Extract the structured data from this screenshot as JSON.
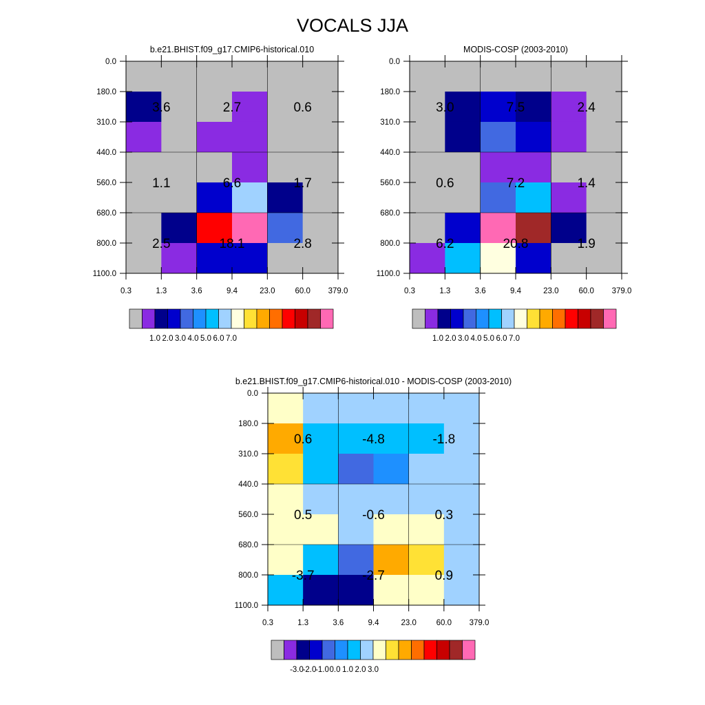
{
  "title": "VOCALS JJA",
  "colors": {
    "clear": "#bebebe",
    "seq": [
      "#bebebe",
      "#8a2be2",
      "#00008b",
      "#0000cd",
      "#4169e1",
      "#1e90ff",
      "#00bfff",
      "#a0d2ff",
      "#ffffe0",
      "#ffe135",
      "#ffaa00",
      "#ff6e00",
      "#ff0000",
      "#c80000",
      "#a02828",
      "#ff69b4"
    ],
    "diff": [
      "#bebebe",
      "#8a2be2",
      "#00008b",
      "#0000cd",
      "#4169e1",
      "#1e90ff",
      "#00bfff",
      "#a0d2ff",
      "#ffffc8",
      "#ffe135",
      "#ffaa00",
      "#ff6e00",
      "#ff0000",
      "#c80000",
      "#a02828",
      "#ff69b4"
    ]
  },
  "chart_data": [
    {
      "type": "heatmap",
      "id": "model",
      "title": "b.e21.BHIST.f09_g17.CMIP6-historical.010",
      "x_ticks": [
        "0.3",
        "1.3",
        "3.6",
        "9.4",
        "23.0",
        "60.0",
        "379.0"
      ],
      "y_ticks": [
        "0.0",
        "180.0",
        "310.0",
        "440.0",
        "560.0",
        "680.0",
        "800.0",
        "1100.0"
      ],
      "grid": true,
      "cells": [
        [
          0,
          0,
          0,
          0,
          0,
          0
        ],
        [
          2,
          0,
          0,
          1,
          0,
          0
        ],
        [
          1,
          0,
          1,
          1,
          0,
          0
        ],
        [
          0,
          0,
          0,
          1,
          0,
          0
        ],
        [
          0,
          0,
          3,
          7,
          2,
          0
        ],
        [
          0,
          2,
          12,
          15,
          4,
          0
        ],
        [
          0,
          1,
          3,
          3,
          0,
          0
        ]
      ],
      "region_labels": [
        {
          "row": 0,
          "col": 0,
          "text": "3.6"
        },
        {
          "row": 0,
          "col": 1,
          "text": "2.7"
        },
        {
          "row": 0,
          "col": 2,
          "text": "0.6"
        },
        {
          "row": 1,
          "col": 0,
          "text": "1.1"
        },
        {
          "row": 1,
          "col": 1,
          "text": "6.6"
        },
        {
          "row": 1,
          "col": 2,
          "text": "1.7"
        },
        {
          "row": 2,
          "col": 0,
          "text": "2.5"
        },
        {
          "row": 2,
          "col": 1,
          "text": "18.1"
        },
        {
          "row": 2,
          "col": 2,
          "text": "2.8"
        }
      ],
      "colorbar": {
        "palette": "seq",
        "labels": [
          "1.0",
          "2.0",
          "3.0",
          "4.0",
          "5.0",
          "6.0",
          "7.0"
        ]
      }
    },
    {
      "type": "heatmap",
      "id": "obs",
      "title": "MODIS-COSP (2003-2010)",
      "x_ticks": [
        "0.3",
        "1.3",
        "3.6",
        "9.4",
        "23.0",
        "60.0",
        "379.0"
      ],
      "y_ticks": [
        "0.0",
        "180.0",
        "310.0",
        "440.0",
        "560.0",
        "680.0",
        "800.0",
        "1100.0"
      ],
      "grid": true,
      "cells": [
        [
          0,
          0,
          0,
          0,
          0,
          0
        ],
        [
          0,
          2,
          3,
          2,
          1,
          0
        ],
        [
          0,
          2,
          4,
          3,
          1,
          0
        ],
        [
          0,
          0,
          1,
          1,
          0,
          0
        ],
        [
          0,
          0,
          4,
          6,
          1,
          0
        ],
        [
          0,
          3,
          15,
          14,
          2,
          0
        ],
        [
          1,
          6,
          8,
          3,
          0,
          0
        ]
      ],
      "region_labels": [
        {
          "row": 0,
          "col": 0,
          "text": "3.0"
        },
        {
          "row": 0,
          "col": 1,
          "text": "7.5"
        },
        {
          "row": 0,
          "col": 2,
          "text": "2.4"
        },
        {
          "row": 1,
          "col": 0,
          "text": "0.6"
        },
        {
          "row": 1,
          "col": 1,
          "text": "7.2"
        },
        {
          "row": 1,
          "col": 2,
          "text": "1.4"
        },
        {
          "row": 2,
          "col": 0,
          "text": "6.2"
        },
        {
          "row": 2,
          "col": 1,
          "text": "20.8"
        },
        {
          "row": 2,
          "col": 2,
          "text": "1.9"
        }
      ],
      "colorbar": {
        "palette": "seq",
        "labels": [
          "1.0",
          "2.0",
          "3.0",
          "4.0",
          "5.0",
          "6.0",
          "7.0"
        ]
      }
    },
    {
      "type": "heatmap",
      "id": "diff",
      "title": "b.e21.BHIST.f09_g17.CMIP6-historical.010 - MODIS-COSP (2003-2010)",
      "x_ticks": [
        "0.3",
        "1.3",
        "3.6",
        "9.4",
        "23.0",
        "60.0",
        "379.0"
      ],
      "y_ticks": [
        "0.0",
        "180.0",
        "310.0",
        "440.0",
        "560.0",
        "680.0",
        "800.0",
        "1100.0"
      ],
      "grid": true,
      "cells": [
        [
          8,
          7,
          7,
          7,
          7,
          7
        ],
        [
          10,
          6,
          6,
          6,
          6,
          7
        ],
        [
          9,
          6,
          4,
          5,
          7,
          7
        ],
        [
          8,
          7,
          7,
          7,
          7,
          7
        ],
        [
          8,
          8,
          7,
          8,
          8,
          7
        ],
        [
          8,
          6,
          4,
          10,
          9,
          7
        ],
        [
          6,
          2,
          2,
          8,
          8,
          7
        ]
      ],
      "region_labels": [
        {
          "row": 0,
          "col": 0,
          "text": "0.6"
        },
        {
          "row": 0,
          "col": 1,
          "text": "-4.8"
        },
        {
          "row": 0,
          "col": 2,
          "text": "-1.8"
        },
        {
          "row": 1,
          "col": 0,
          "text": "0.5"
        },
        {
          "row": 1,
          "col": 1,
          "text": "-0.6"
        },
        {
          "row": 1,
          "col": 2,
          "text": "0.3"
        },
        {
          "row": 2,
          "col": 0,
          "text": "-3.7"
        },
        {
          "row": 2,
          "col": 1,
          "text": "-2.7"
        },
        {
          "row": 2,
          "col": 2,
          "text": "0.9"
        }
      ],
      "colorbar": {
        "palette": "diff",
        "labels": [
          "-3.0",
          "-2.0",
          "-1.0",
          "0.0",
          "1.0",
          "2.0",
          "3.0"
        ]
      }
    }
  ]
}
